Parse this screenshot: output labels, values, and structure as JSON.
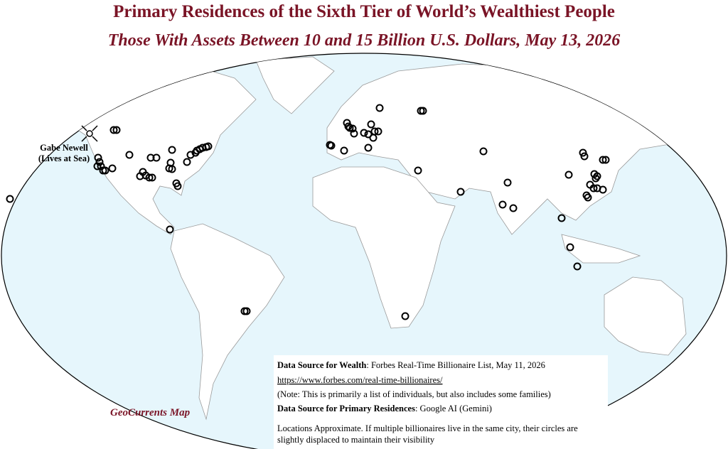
{
  "header": {
    "title": "Primary Residences of the Sixth Tier of World’s Wealthiest People",
    "subtitle": "Those With Assets Between 10 and 15 Billion U.S. Dollars, May 13, 2026"
  },
  "annotation": {
    "lines": [
      "Gabe Newell",
      "(Lives at Sea)"
    ]
  },
  "credit": "GeoCurrents Map",
  "sources": {
    "wealth_label": "Data Source for Wealth",
    "wealth_text": ": Forbes Real-Time Billionaire List, May 11, 2026",
    "url": "https://www.forbes.com/real-time-billionaires/",
    "note": "(Note: This is primarily a list of individuals, but also includes some families)",
    "residence_label": "Data Source for Primary Residences",
    "residence_text": ": Google AI (Gemini)",
    "caveat": [
      "Locations Approximate. If multiple billionaires live in the same city, their circles are",
      "slightly displaced to maintain their visibility"
    ]
  }
}
